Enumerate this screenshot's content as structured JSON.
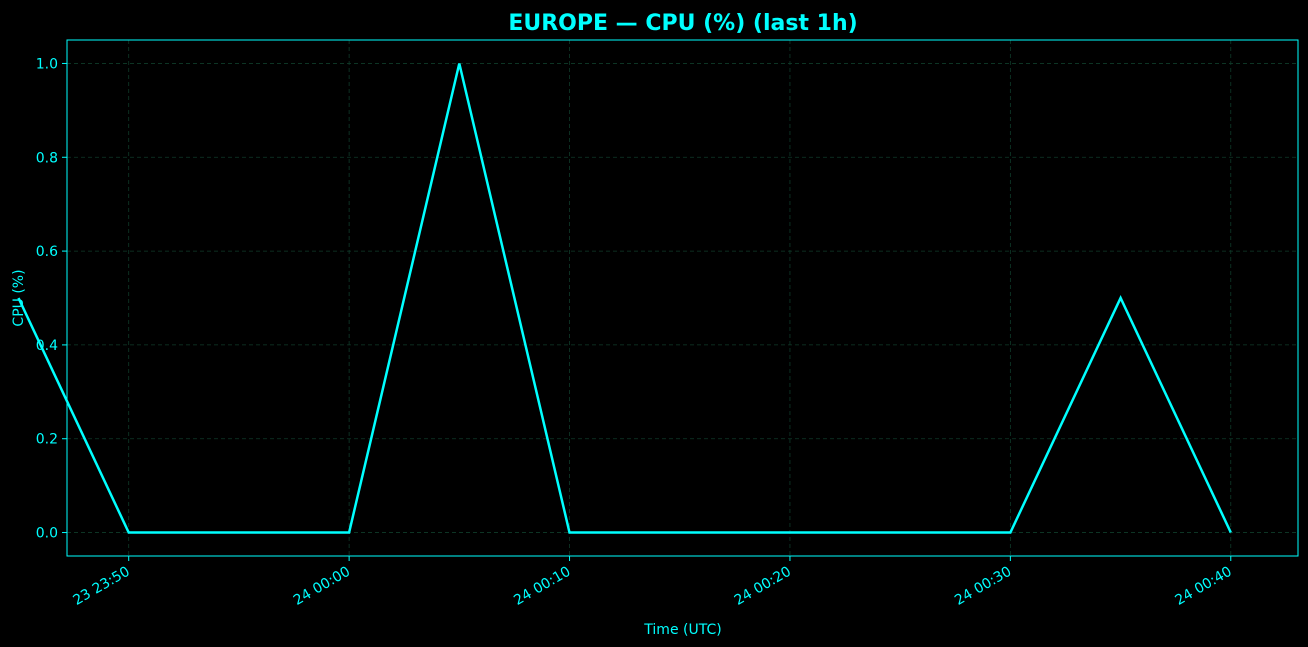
{
  "chart_data": {
    "type": "line",
    "title": "EUROPE — CPU (%) (last 1h)",
    "xlabel": "Time (UTC)",
    "ylabel": "CPU (%)",
    "x_range": [
      "23 23:47:12",
      "24 00:43:03"
    ],
    "ylim": [
      -0.05,
      1.05
    ],
    "xticks": [
      {
        "time": "23 23:50",
        "label": "23 23:50"
      },
      {
        "time": "24 00:00",
        "label": "24 00:00"
      },
      {
        "time": "24 00:10",
        "label": "24 00:10"
      },
      {
        "time": "24 00:20",
        "label": "24 00:20"
      },
      {
        "time": "24 00:30",
        "label": "24 00:30"
      },
      {
        "time": "24 00:40",
        "label": "24 00:40"
      }
    ],
    "yticks": [
      {
        "value": 0.0,
        "label": "0.0"
      },
      {
        "value": 0.2,
        "label": "0.2"
      },
      {
        "value": 0.4,
        "label": "0.4"
      },
      {
        "value": 0.6,
        "label": "0.6"
      },
      {
        "value": 0.8,
        "label": "0.8"
      },
      {
        "value": 1.0,
        "label": "1.0"
      }
    ],
    "grid": true,
    "series": [
      {
        "color": "#00ffff",
        "points": [
          {
            "x": "23 23:45",
            "y": 0.5
          },
          {
            "x": "23 23:50",
            "y": 0.0
          },
          {
            "x": "24 00:00",
            "y": 0.0
          },
          {
            "x": "24 00:05",
            "y": 1.0
          },
          {
            "x": "24 00:10",
            "y": 0.0
          },
          {
            "x": "24 00:30",
            "y": 0.0
          },
          {
            "x": "24 00:35",
            "y": 0.5
          },
          {
            "x": "24 00:40",
            "y": 0.0
          }
        ]
      }
    ],
    "colors": {
      "background": "#000000",
      "axis": "#00ffff",
      "text": "#00ffff",
      "grid": "#0f3b2a",
      "line": "#00ffff"
    }
  }
}
